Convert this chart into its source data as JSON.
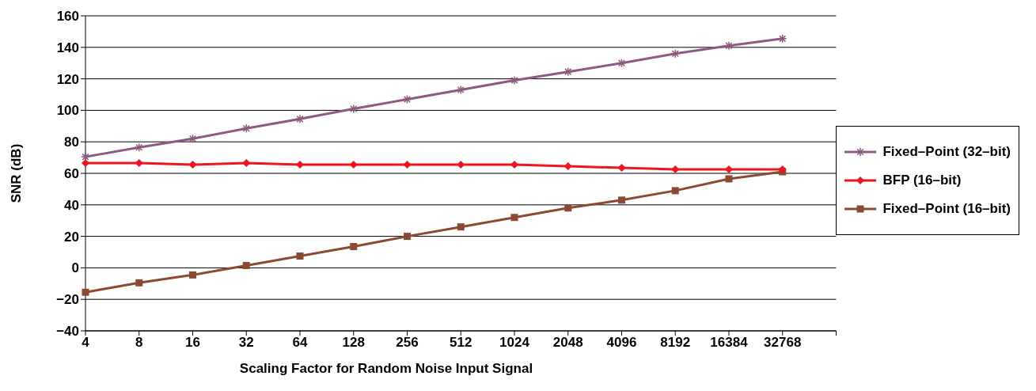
{
  "chart_data": {
    "type": "line",
    "xlabel": "Scaling Factor for Random Noise Input Signal",
    "ylabel": "SNR (dB)",
    "categories": [
      "4",
      "8",
      "16",
      "32",
      "64",
      "128",
      "256",
      "512",
      "1024",
      "2048",
      "4096",
      "8192",
      "16384",
      "32768",
      null
    ],
    "series": [
      {
        "name": "Fixed–Point (32–bit)",
        "color": "#8e5a80",
        "marker": "cross",
        "values": [
          70.5,
          76.5,
          82,
          88.5,
          94.5,
          101,
          107,
          113,
          119,
          124.5,
          130,
          136,
          141,
          145.5,
          null
        ]
      },
      {
        "name": "BFP (16–bit)",
        "color": "#f0141e",
        "marker": "diamond",
        "values": [
          66.5,
          66.5,
          65.5,
          66.5,
          65.5,
          65.5,
          65.5,
          65.5,
          65.5,
          64.5,
          63.5,
          62.5,
          62.5,
          62.5,
          null
        ]
      },
      {
        "name": "Fixed–Point (16–bit)",
        "color": "#8b4a32",
        "marker": "square",
        "values": [
          -15.5,
          -9.5,
          -4.5,
          1.5,
          7.5,
          13.5,
          20,
          26,
          32,
          38,
          43,
          49,
          56.5,
          61,
          null
        ]
      }
    ],
    "ylim": [
      -40,
      160
    ],
    "yticks": [
      -40,
      -20,
      0,
      20,
      40,
      60,
      80,
      100,
      120,
      140,
      160
    ],
    "grid": "y",
    "legend": "right",
    "line_style": "solid"
  }
}
